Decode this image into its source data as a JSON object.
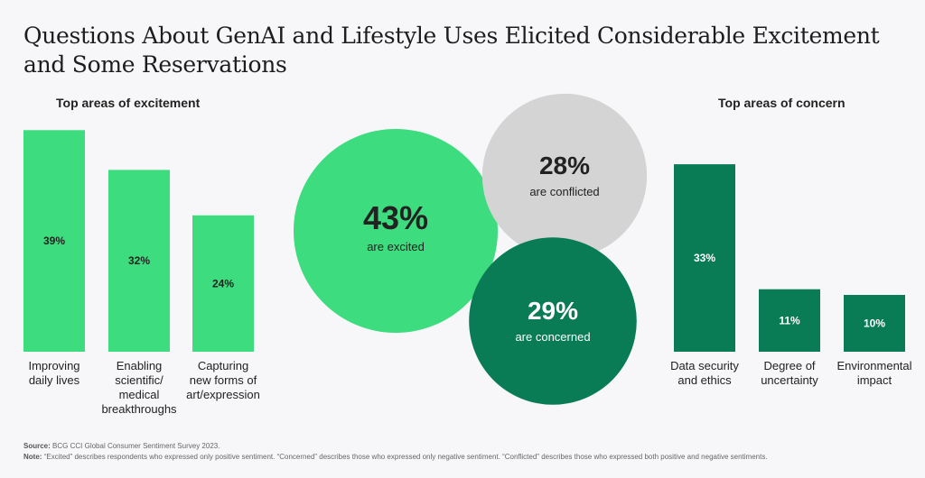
{
  "title": "Questions About GenAI and Lifestyle Uses Elicited Considerable Excitement and Some Reservations",
  "colors": {
    "excitement": "#3ddc7e",
    "concern": "#0a7c55",
    "conflicted": "#d4d4d4",
    "text_dark": "#222222"
  },
  "chart_data": [
    {
      "type": "bar",
      "title": "Top areas of excitement",
      "categories": [
        "Improving daily lives",
        "Enabling scientific/ medical breakthroughs",
        "Capturing new forms of art/expression"
      ],
      "category_lines": [
        [
          "Improving",
          "daily lives"
        ],
        [
          "Enabling",
          "scientific/",
          "medical",
          "breakthroughs"
        ],
        [
          "Capturing",
          "new forms of",
          "art/expression"
        ]
      ],
      "values": [
        39,
        32,
        24
      ],
      "value_labels": [
        "39%",
        "32%",
        "24%"
      ],
      "unit": "%"
    },
    {
      "type": "bubble",
      "categories": [
        "are excited",
        "are conflicted",
        "are concerned"
      ],
      "values": [
        43,
        28,
        29
      ],
      "value_labels": [
        "43%",
        "28%",
        "29%"
      ],
      "unit": "%"
    },
    {
      "type": "bar",
      "title": "Top areas of concern",
      "categories": [
        "Data security and ethics",
        "Degree of uncertainty",
        "Environmental impact"
      ],
      "category_lines": [
        [
          "Data security",
          "and ethics"
        ],
        [
          "Degree of",
          "uncertainty"
        ],
        [
          "Environmental",
          "impact"
        ]
      ],
      "values": [
        33,
        11,
        10
      ],
      "value_labels": [
        "33%",
        "11%",
        "10%"
      ],
      "unit": "%"
    }
  ],
  "footer": {
    "source_label": "Source:",
    "source_text": "BCG CCI Global Consumer Sentiment Survey 2023.",
    "note_label": "Note:",
    "note_text": "“Excited” describes respondents who expressed only positive sentiment. “Concerned” describes those who expressed only negative sentiment. “Conflicted” describes those who expressed both positive and negative sentiments."
  }
}
